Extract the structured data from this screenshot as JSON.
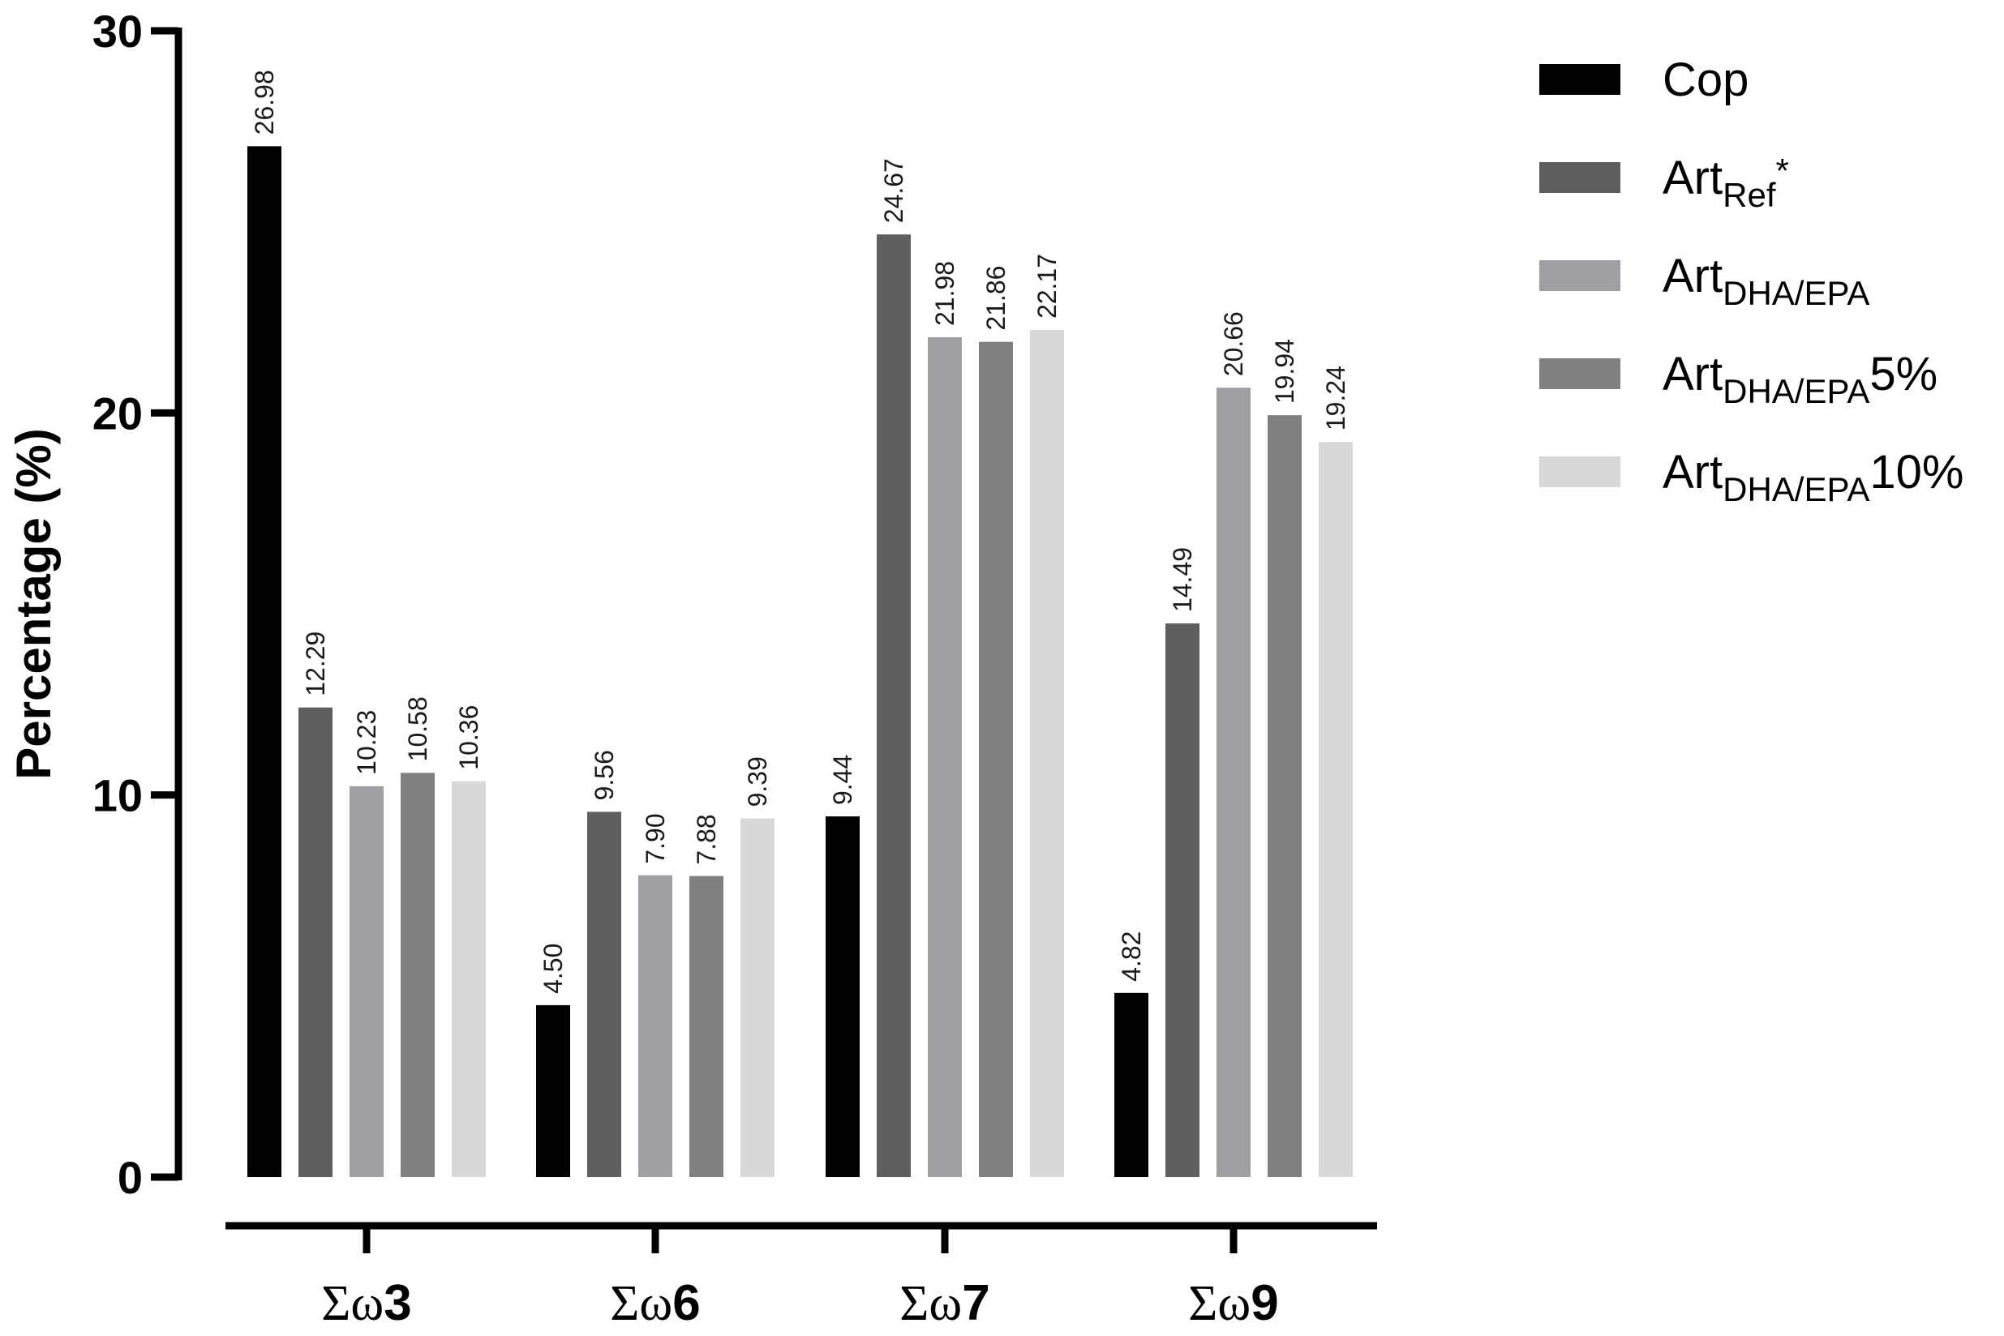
{
  "chart_data": {
    "type": "bar",
    "title": "",
    "xlabel": "",
    "ylabel": "Percentage (%)",
    "ylim": [
      0,
      30
    ],
    "yticks": [
      "0",
      "10",
      "20",
      "30"
    ],
    "grid": false,
    "legend_position": "right",
    "categories": [
      {
        "prefix": "Σω",
        "num": "3"
      },
      {
        "prefix": "Σω",
        "num": "6"
      },
      {
        "prefix": "Σω",
        "num": "7"
      },
      {
        "prefix": "Σω",
        "num": "9"
      }
    ],
    "series": [
      {
        "name": "Cop",
        "name_main": "Cop",
        "name_sub": "",
        "name_suffix": "",
        "color": "#000000",
        "values": [
          26.98,
          4.5,
          9.44,
          4.82
        ],
        "labels": [
          "26.98",
          "4.50",
          "9.44",
          "4.82"
        ]
      },
      {
        "name": "ArtRef*",
        "name_main": "Art",
        "name_sub": "Ref",
        "name_suffix": "*",
        "color": "#5f5f5f",
        "values": [
          12.29,
          9.56,
          24.67,
          14.49
        ],
        "labels": [
          "12.29",
          "9.56",
          "24.67",
          "14.49"
        ]
      },
      {
        "name": "ArtDHA/EPA",
        "name_main": "Art",
        "name_sub": "DHA/EPA",
        "name_suffix": "",
        "color": "#a0a0a4",
        "values": [
          10.23,
          7.9,
          21.98,
          20.66
        ],
        "labels": [
          "10.23",
          "7.90",
          "21.98",
          "20.66"
        ]
      },
      {
        "name": "ArtDHA/EPA5%",
        "name_main": "Art",
        "name_sub": "DHA/EPA",
        "name_suffix": "5%",
        "color": "#808080",
        "values": [
          10.58,
          7.88,
          21.86,
          19.94
        ],
        "labels": [
          "10.58",
          "7.88",
          "21.86",
          "19.94"
        ]
      },
      {
        "name": "ArtDHA/EPA10%",
        "name_main": "Art",
        "name_sub": "DHA/EPA",
        "name_suffix": "10%",
        "color": "#d8d8d8",
        "values": [
          10.36,
          9.39,
          22.17,
          19.24
        ],
        "labels": [
          "10.36",
          "9.39",
          "22.17",
          "19.24"
        ]
      }
    ]
  }
}
